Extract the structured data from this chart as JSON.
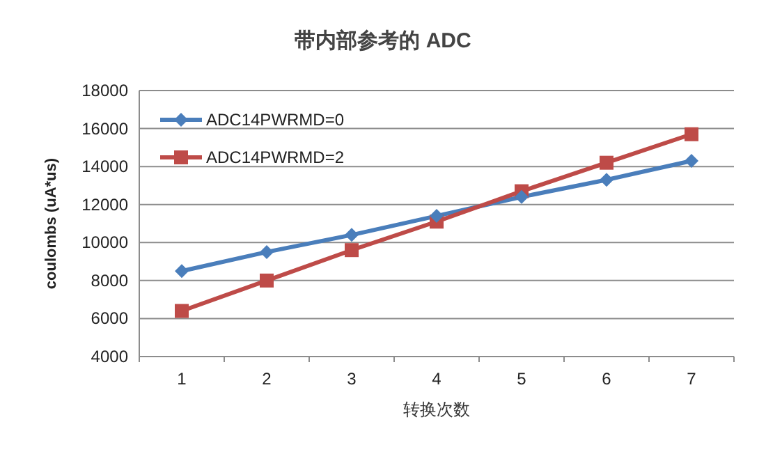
{
  "chart_data": {
    "type": "line",
    "title": "带内部参考的 ADC",
    "xlabel": "转换次数",
    "ylabel": "coulombs (uA*us)",
    "categories": [
      "1",
      "2",
      "3",
      "4",
      "5",
      "6",
      "7"
    ],
    "series": [
      {
        "name": "ADC14PWRMD=0",
        "color": "#4a7ebb",
        "marker": "diamond",
        "values": [
          8500,
          9500,
          10400,
          11400,
          12400,
          13300,
          14300
        ]
      },
      {
        "name": "ADC14PWRMD=2",
        "color": "#be4b48",
        "marker": "square",
        "values": [
          6400,
          8000,
          9600,
          11100,
          12700,
          14200,
          15700
        ]
      }
    ],
    "ylim": [
      4000,
      18000
    ],
    "yticks": [
      4000,
      6000,
      8000,
      10000,
      12000,
      14000,
      16000,
      18000
    ],
    "grid": "y",
    "legend": "top left"
  }
}
